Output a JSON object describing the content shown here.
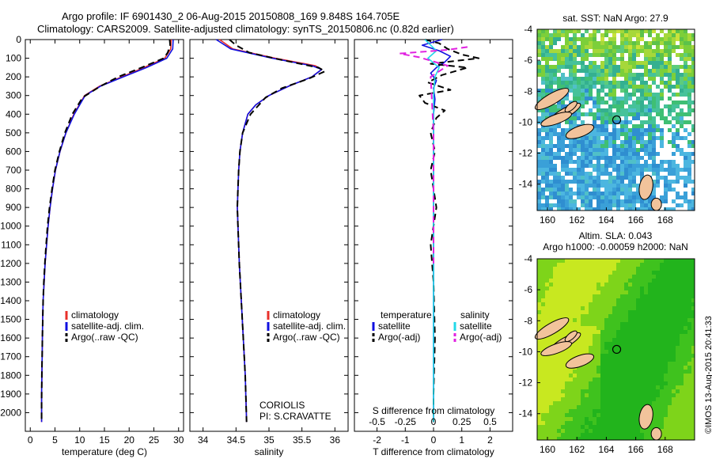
{
  "header": {
    "line1": "Argo profile: IF 6901430_2 06-Aug-2015 20150808_169 9.848S 164.705E",
    "line2": "Climatology: CARS2009. Satellite-adjusted climatology: synTS_20150806.nc (0.82d earlier)"
  },
  "credit": "©IMOS 13-Aug-2015 20:41:33",
  "colors": {
    "climatology": "#e8302a",
    "satellite": "#1010e0",
    "argo": "#000000",
    "satellite_salinity": "#22d8e8",
    "argo_salinity": "#e020e0",
    "land": "#f2c39b"
  },
  "chart_data": [
    {
      "id": "temperature",
      "type": "line",
      "xlabel": "temperature (deg C)",
      "ylabel": "",
      "xlim": [
        -1,
        31
      ],
      "ylim": [
        2100,
        0
      ],
      "xticks": [
        0,
        5,
        10,
        15,
        20,
        25,
        30
      ],
      "yticks": [
        0,
        100,
        200,
        300,
        400,
        500,
        600,
        700,
        800,
        900,
        1000,
        1100,
        1200,
        1300,
        1400,
        1500,
        1600,
        1700,
        1800,
        1900,
        2000
      ],
      "legend": {
        "position": "lower-left",
        "entries": [
          "climatology",
          "satellite-adj. clim.",
          "Argo(..raw -QC)"
        ]
      },
      "series": [
        {
          "name": "climatology",
          "color": "#e8302a",
          "style": "solid",
          "x": [
            28.5,
            28.4,
            27.2,
            23,
            18.5,
            14,
            11,
            8.8,
            7.2,
            6,
            5.1,
            4.5,
            4,
            3.6,
            3.3,
            3,
            2.8,
            2.6,
            2.5,
            2.4,
            2.3,
            2.3
          ],
          "y": [
            0,
            50,
            100,
            150,
            200,
            250,
            300,
            400,
            500,
            600,
            700,
            800,
            900,
            1000,
            1100,
            1200,
            1300,
            1400,
            1500,
            1700,
            1900,
            2050
          ]
        },
        {
          "name": "satellite-adj. clim.",
          "color": "#1010e0",
          "style": "solid",
          "x": [
            28.9,
            28.8,
            27.6,
            23.5,
            18.8,
            14.2,
            11.1,
            8.9,
            7.2,
            6,
            5.1,
            4.5,
            4,
            3.6,
            3.3,
            3,
            2.8,
            2.6,
            2.5,
            2.4,
            2.3,
            2.3
          ],
          "y": [
            0,
            50,
            100,
            150,
            200,
            250,
            300,
            400,
            500,
            600,
            700,
            800,
            900,
            1000,
            1100,
            1200,
            1300,
            1400,
            1500,
            1700,
            1900,
            2050
          ]
        },
        {
          "name": "Argo(..raw -QC)",
          "color": "#000000",
          "style": "dashed",
          "x": [
            28.2,
            28.3,
            27.8,
            27.0,
            22.5,
            17.8,
            14.2,
            10.6,
            8.5,
            7.0,
            5.9,
            5.0,
            4.4,
            3.9,
            3.5,
            3.2,
            2.95,
            2.75,
            2.6,
            2.45,
            2.35,
            2.3,
            2.3
          ],
          "y": [
            0,
            30,
            70,
            100,
            150,
            200,
            250,
            310,
            400,
            500,
            600,
            700,
            800,
            900,
            1000,
            1100,
            1200,
            1300,
            1400,
            1600,
            1800,
            1950,
            2050
          ]
        }
      ]
    },
    {
      "id": "salinity",
      "type": "line",
      "xlabel": "salinity",
      "ylabel": "",
      "xlim": [
        33.8,
        36.2
      ],
      "ylim": [
        2100,
        0
      ],
      "xticks": [
        34,
        34.5,
        35,
        35.5,
        36
      ],
      "legend": {
        "position": "lower-right",
        "entries": [
          "climatology",
          "satellite-adj. clim.",
          "Argo(..raw -QC)"
        ]
      },
      "annotation": [
        "CORIOLIS",
        "PI: S.CRAVATTE"
      ],
      "series": [
        {
          "name": "climatology",
          "color": "#e8302a",
          "style": "solid",
          "x": [
            34.25,
            34.45,
            35.1,
            35.7,
            35.8,
            35.65,
            35.3,
            35.0,
            34.8,
            34.68,
            34.6,
            34.56,
            34.54,
            34.53,
            34.52,
            34.53,
            34.55,
            34.58,
            34.61,
            34.64,
            34.66
          ],
          "y": [
            0,
            50,
            100,
            140,
            160,
            200,
            250,
            300,
            350,
            400,
            500,
            600,
            700,
            800,
            900,
            1000,
            1200,
            1400,
            1600,
            1800,
            2050
          ]
        },
        {
          "name": "satellite-adj. clim.",
          "color": "#1010e0",
          "style": "solid",
          "x": [
            34.2,
            34.42,
            35.05,
            35.65,
            35.8,
            35.65,
            35.3,
            35.0,
            34.8,
            34.68,
            34.6,
            34.56,
            34.54,
            34.53,
            34.52,
            34.53,
            34.55,
            34.58,
            34.61,
            34.64,
            34.66
          ],
          "y": [
            0,
            50,
            100,
            140,
            160,
            200,
            250,
            300,
            350,
            400,
            500,
            600,
            700,
            800,
            900,
            1000,
            1200,
            1400,
            1600,
            1800,
            2050
          ]
        },
        {
          "name": "Argo(..raw -QC)",
          "color": "#000000",
          "style": "dashed",
          "x": [
            34.4,
            34.5,
            34.7,
            35.2,
            35.75,
            35.85,
            35.6,
            35.2,
            34.95,
            34.72,
            34.6,
            34.56,
            34.54,
            34.53,
            34.52,
            34.53,
            34.55,
            34.58,
            34.61,
            34.64,
            34.66
          ],
          "y": [
            0,
            30,
            70,
            110,
            150,
            170,
            210,
            260,
            310,
            400,
            500,
            600,
            700,
            800,
            900,
            1000,
            1200,
            1400,
            1600,
            1800,
            2050
          ]
        }
      ]
    },
    {
      "id": "difference",
      "type": "line",
      "xlabel": "T difference from climatology",
      "xlabel_top": "S difference from climatology",
      "xlim": [
        -2.8,
        2.8
      ],
      "ylim": [
        2100,
        0
      ],
      "xticks": [
        -2,
        -1,
        0,
        1,
        2
      ],
      "xticks_salinity": [
        -0.5,
        -0.25,
        0,
        0.25,
        0.5
      ],
      "legend": {
        "position": "lower-center",
        "temperature_title": "temperature",
        "salinity_title": "salinity",
        "temperature_entries": [
          "satellite",
          "Argo(-adj)"
        ],
        "salinity_entries": [
          "satellite",
          "Argo(-adj)"
        ]
      },
      "series": [
        {
          "name": "temperature satellite",
          "color": "#1010e0",
          "style": "solid",
          "x": [
            0.3,
            -0.4,
            0.2,
            0.6,
            0.4,
            0.1,
            -0.1,
            0.1,
            0,
            0.05,
            0,
            0,
            0,
            0,
            0,
            0,
            0,
            0,
            0
          ],
          "y": [
            0,
            30,
            60,
            90,
            120,
            150,
            180,
            220,
            260,
            320,
            400,
            500,
            700,
            900,
            1200,
            1500,
            1800,
            2000,
            2050
          ]
        },
        {
          "name": "temperature Argo(-adj)",
          "color": "#000000",
          "style": "dashed",
          "x": [
            -0.3,
            0.2,
            0.5,
            1.0,
            1.6,
            -0.1,
            1.2,
            0.3,
            -0.2,
            0.6,
            -0.5,
            -0.3,
            0.4,
            0.1,
            -0.1,
            0.05,
            -0.1,
            0,
            0.1,
            -0.1,
            0,
            0.05,
            0,
            0
          ],
          "y": [
            0,
            20,
            50,
            80,
            100,
            130,
            150,
            190,
            230,
            270,
            300,
            340,
            380,
            420,
            500,
            600,
            700,
            800,
            900,
            1100,
            1300,
            1600,
            1900,
            2050
          ]
        },
        {
          "name": "salinity satellite",
          "color": "#22d8e8",
          "style": "solid",
          "x": [
            -0.3,
            -0.1,
            0.1,
            -0.2,
            0.2,
            0.05,
            0,
            0,
            0,
            0
          ],
          "y": [
            0,
            30,
            60,
            100,
            150,
            200,
            300,
            600,
            1200,
            2050
          ]
        },
        {
          "name": "salinity Argo(-adj)",
          "color": "#e020e0",
          "style": "dashed",
          "x": [
            1.2,
            0.5,
            -1.2,
            -0.5,
            0.5,
            -0.1,
            0,
            0
          ],
          "y": [
            40,
            55,
            75,
            95,
            140,
            200,
            500,
            1200
          ]
        }
      ]
    },
    {
      "id": "sst-map",
      "type": "heatmap",
      "title": "sat. SST: NaN Argo: 27.9",
      "xticks": [
        160,
        162,
        164,
        166,
        168
      ],
      "yticks": [
        -4,
        -6,
        -8,
        -10,
        -12,
        -14
      ],
      "xlim": [
        159.3,
        170
      ],
      "ylim": [
        -15.7,
        -4
      ],
      "marker": {
        "lon": 164.705,
        "lat": -9.848
      }
    },
    {
      "id": "sla-map",
      "type": "heatmap",
      "title_line1": "Altim. SLA: 0.043",
      "title_line2": "Argo h1000: -0.00059 h2000: NaN",
      "xticks": [
        160,
        162,
        164,
        166,
        168
      ],
      "yticks": [
        -4,
        -6,
        -8,
        -10,
        -12,
        -14
      ],
      "xlim": [
        159.3,
        170
      ],
      "ylim": [
        -15.7,
        -4
      ],
      "marker": {
        "lon": 164.705,
        "lat": -9.848
      }
    }
  ]
}
